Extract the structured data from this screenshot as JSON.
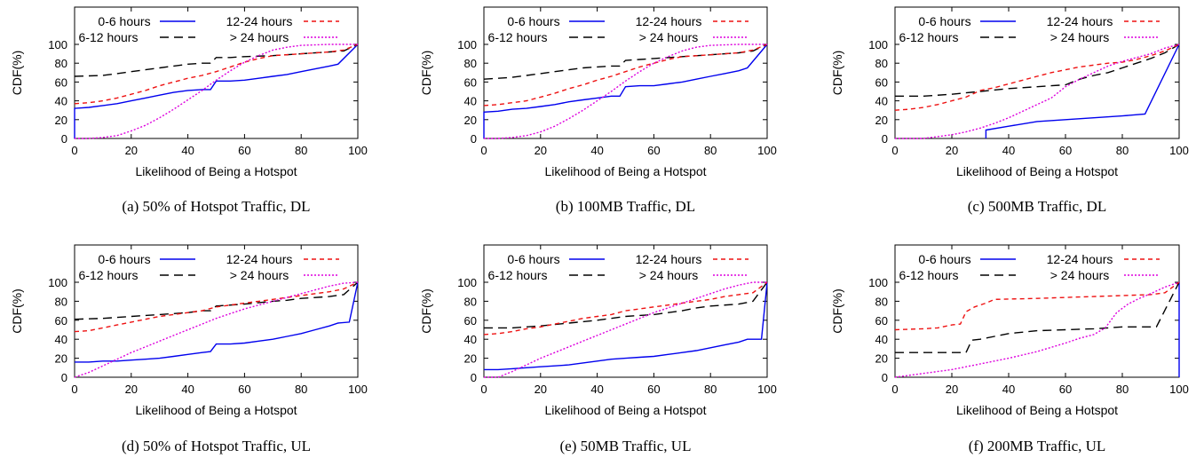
{
  "legend_labels": [
    "0-6 hours",
    "6-12 hours",
    "12-24 hours",
    "> 24 hours"
  ],
  "colors": {
    "0-6 hours": "#0000ee",
    "6-12 hours": "#000000",
    "12-24 hours": "#ee1111",
    "> 24 hours": "#dd00dd"
  },
  "chart_data": [
    {
      "type": "line",
      "caption": "(a)  50% of Hotspot Traffic, DL",
      "xlabel": "Likelihood of Being a Hotspot",
      "ylabel": "CDF(%)",
      "xlim": [
        0,
        100
      ],
      "ylim": [
        0,
        100
      ],
      "xticks": [
        0,
        20,
        40,
        60,
        80,
        100
      ],
      "yticks": [
        0,
        20,
        40,
        60,
        80,
        100
      ],
      "series": [
        {
          "name": "0-6 hours",
          "x": [
            0,
            0,
            5,
            10,
            15,
            20,
            25,
            30,
            35,
            40,
            45,
            48,
            50,
            55,
            60,
            65,
            70,
            75,
            80,
            85,
            90,
            93,
            100
          ],
          "y": [
            0,
            32,
            33,
            35,
            37,
            40,
            43,
            46,
            49,
            51,
            52,
            52,
            61,
            61,
            62,
            64,
            66,
            68,
            71,
            74,
            77,
            79,
            100
          ]
        },
        {
          "name": "6-12 hours",
          "x": [
            0,
            10,
            15,
            20,
            25,
            30,
            35,
            40,
            45,
            48,
            50,
            55,
            60,
            70,
            80,
            90,
            95,
            100
          ],
          "y": [
            66,
            67,
            69,
            71,
            73,
            75,
            77,
            79,
            80,
            80,
            86,
            86,
            87,
            88,
            90,
            92,
            93,
            100
          ]
        },
        {
          "name": "12-24 hours",
          "x": [
            0,
            5,
            10,
            15,
            20,
            25,
            30,
            35,
            40,
            45,
            50,
            55,
            60,
            65,
            70,
            80,
            90,
            95,
            100
          ],
          "y": [
            37,
            38,
            40,
            43,
            47,
            51,
            56,
            60,
            64,
            67,
            71,
            76,
            81,
            85,
            88,
            90,
            92,
            94,
            100
          ]
        },
        {
          "name": "> 24 hours",
          "x": [
            0,
            5,
            10,
            15,
            20,
            25,
            30,
            35,
            40,
            45,
            50,
            55,
            60,
            65,
            70,
            75,
            80,
            90,
            100
          ],
          "y": [
            0,
            0,
            1,
            3,
            8,
            14,
            22,
            31,
            41,
            51,
            62,
            72,
            81,
            88,
            94,
            97,
            99,
            100,
            100
          ]
        }
      ]
    },
    {
      "type": "line",
      "caption": "(b)  100MB Traffic, DL",
      "xlabel": "Likelihood of Being a Hotspot",
      "ylabel": "CDF(%)",
      "xlim": [
        0,
        100
      ],
      "ylim": [
        0,
        100
      ],
      "xticks": [
        0,
        20,
        40,
        60,
        80,
        100
      ],
      "yticks": [
        0,
        20,
        40,
        60,
        80,
        100
      ],
      "series": [
        {
          "name": "0-6 hours",
          "x": [
            0,
            0,
            5,
            10,
            15,
            20,
            25,
            30,
            35,
            40,
            45,
            48,
            50,
            55,
            60,
            65,
            70,
            75,
            80,
            85,
            90,
            93,
            100
          ],
          "y": [
            0,
            28,
            29,
            31,
            32,
            34,
            36,
            39,
            41,
            43,
            45,
            45,
            55,
            56,
            56,
            58,
            60,
            63,
            66,
            69,
            72,
            75,
            100
          ]
        },
        {
          "name": "6-12 hours",
          "x": [
            0,
            5,
            10,
            15,
            20,
            25,
            30,
            35,
            40,
            45,
            48,
            50,
            55,
            60,
            70,
            80,
            90,
            95,
            100
          ],
          "y": [
            63,
            64,
            65,
            67,
            69,
            71,
            73,
            75,
            76,
            77,
            77,
            83,
            84,
            85,
            87,
            89,
            91,
            93,
            100
          ]
        },
        {
          "name": "12-24 hours",
          "x": [
            0,
            5,
            10,
            15,
            20,
            25,
            30,
            35,
            40,
            45,
            50,
            55,
            60,
            65,
            70,
            80,
            90,
            95,
            100
          ],
          "y": [
            35,
            36,
            38,
            40,
            44,
            48,
            53,
            57,
            62,
            66,
            71,
            76,
            80,
            84,
            87,
            89,
            91,
            94,
            100
          ]
        },
        {
          "name": "> 24 hours",
          "x": [
            0,
            5,
            10,
            15,
            20,
            25,
            30,
            35,
            40,
            45,
            50,
            55,
            60,
            65,
            70,
            75,
            80,
            90,
            100
          ],
          "y": [
            0,
            0,
            1,
            3,
            7,
            13,
            21,
            30,
            40,
            50,
            61,
            71,
            80,
            87,
            93,
            97,
            99,
            100,
            100
          ]
        }
      ]
    },
    {
      "type": "line",
      "caption": "(c)  500MB Traffic, DL",
      "xlabel": "Likelihood of Being a Hotspot",
      "ylabel": "CDF(%)",
      "xlim": [
        0,
        100
      ],
      "ylim": [
        0,
        100
      ],
      "xticks": [
        0,
        20,
        40,
        60,
        80,
        100
      ],
      "yticks": [
        0,
        20,
        40,
        60,
        80,
        100
      ],
      "series": [
        {
          "name": "0-6 hours",
          "x": [
            32,
            32,
            40,
            50,
            60,
            70,
            80,
            88,
            100
          ],
          "y": [
            0,
            9,
            13,
            18,
            20,
            22,
            24,
            26,
            100
          ]
        },
        {
          "name": "6-12 hours",
          "x": [
            0,
            10,
            20,
            30,
            40,
            50,
            55,
            60,
            65,
            70,
            75,
            80,
            85,
            90,
            95,
            100
          ],
          "y": [
            45,
            45,
            47,
            50,
            53,
            55,
            56,
            57,
            63,
            67,
            70,
            75,
            80,
            85,
            91,
            100
          ]
        },
        {
          "name": "12-24 hours",
          "x": [
            0,
            5,
            10,
            15,
            20,
            25,
            30,
            35,
            40,
            45,
            50,
            55,
            60,
            65,
            70,
            75,
            80,
            85,
            90,
            95,
            100
          ],
          "y": [
            30,
            31,
            33,
            36,
            40,
            44,
            51,
            54,
            58,
            62,
            66,
            70,
            73,
            76,
            78,
            80,
            81,
            84,
            88,
            93,
            100
          ]
        },
        {
          "name": "> 24 hours",
          "x": [
            0,
            10,
            15,
            20,
            25,
            30,
            35,
            40,
            45,
            50,
            55,
            60,
            65,
            70,
            75,
            80,
            85,
            90,
            95,
            100
          ],
          "y": [
            0,
            0,
            2,
            4,
            7,
            11,
            16,
            22,
            29,
            36,
            43,
            55,
            63,
            70,
            77,
            82,
            86,
            90,
            96,
            100
          ]
        }
      ]
    },
    {
      "type": "line",
      "caption": "(d)  50% of Hotspot Traffic, UL",
      "xlabel": "Likelihood of Being a Hotspot",
      "ylabel": "CDF(%)",
      "xlim": [
        0,
        100
      ],
      "ylim": [
        0,
        100
      ],
      "xticks": [
        0,
        20,
        40,
        60,
        80,
        100
      ],
      "yticks": [
        0,
        20,
        40,
        60,
        80,
        100
      ],
      "series": [
        {
          "name": "0-6 hours",
          "x": [
            0,
            5,
            10,
            15,
            20,
            25,
            30,
            35,
            40,
            45,
            48,
            50,
            55,
            60,
            65,
            70,
            75,
            80,
            85,
            90,
            93,
            97,
            100
          ],
          "y": [
            16,
            16,
            17,
            17,
            18,
            19,
            20,
            22,
            24,
            26,
            27,
            35,
            35,
            36,
            38,
            40,
            43,
            46,
            50,
            54,
            57,
            58,
            100
          ]
        },
        {
          "name": "6-12 hours",
          "x": [
            0,
            10,
            20,
            30,
            40,
            45,
            48,
            50,
            60,
            70,
            75,
            80,
            90,
            95,
            100
          ],
          "y": [
            61,
            62,
            64,
            66,
            68,
            70,
            70,
            75,
            77,
            80,
            81,
            83,
            85,
            87,
            100
          ]
        },
        {
          "name": "12-24 hours",
          "x": [
            0,
            5,
            10,
            15,
            20,
            25,
            30,
            35,
            40,
            45,
            50,
            55,
            60,
            65,
            70,
            75,
            80,
            85,
            90,
            95,
            100
          ],
          "y": [
            48,
            49,
            52,
            55,
            58,
            61,
            64,
            66,
            68,
            70,
            74,
            76,
            78,
            80,
            82,
            84,
            86,
            88,
            90,
            93,
            100
          ]
        },
        {
          "name": "> 24 hours",
          "x": [
            0,
            5,
            10,
            15,
            20,
            25,
            30,
            35,
            40,
            45,
            50,
            55,
            60,
            65,
            70,
            75,
            80,
            85,
            90,
            95,
            100
          ],
          "y": [
            0,
            5,
            12,
            19,
            26,
            32,
            38,
            44,
            50,
            56,
            62,
            67,
            72,
            76,
            80,
            84,
            88,
            92,
            96,
            99,
            100
          ]
        }
      ]
    },
    {
      "type": "line",
      "caption": "(e)  50MB Traffic, UL",
      "xlabel": "Likelihood of Being a Hotspot",
      "ylabel": "CDF(%)",
      "xlim": [
        0,
        100
      ],
      "ylim": [
        0,
        100
      ],
      "xticks": [
        0,
        20,
        40,
        60,
        80,
        100
      ],
      "yticks": [
        0,
        20,
        40,
        60,
        80,
        100
      ],
      "series": [
        {
          "name": "0-6 hours",
          "x": [
            0,
            5,
            10,
            15,
            20,
            25,
            30,
            35,
            40,
            45,
            50,
            55,
            60,
            65,
            70,
            75,
            80,
            85,
            90,
            93,
            98,
            100
          ],
          "y": [
            8,
            8,
            9,
            10,
            11,
            12,
            13,
            15,
            17,
            19,
            20,
            21,
            22,
            24,
            26,
            28,
            31,
            34,
            37,
            40,
            40,
            100
          ]
        },
        {
          "name": "6-12 hours",
          "x": [
            0,
            10,
            20,
            30,
            40,
            50,
            60,
            65,
            70,
            75,
            80,
            90,
            95,
            100
          ],
          "y": [
            52,
            52,
            54,
            57,
            60,
            64,
            66,
            68,
            70,
            73,
            75,
            77,
            80,
            100
          ]
        },
        {
          "name": "12-24 hours",
          "x": [
            0,
            5,
            10,
            15,
            20,
            25,
            30,
            35,
            40,
            45,
            50,
            55,
            60,
            65,
            70,
            75,
            80,
            85,
            90,
            95,
            100
          ],
          "y": [
            45,
            46,
            48,
            51,
            53,
            56,
            59,
            62,
            64,
            66,
            70,
            72,
            74,
            76,
            78,
            80,
            82,
            85,
            87,
            89,
            100
          ]
        },
        {
          "name": "> 24 hours",
          "x": [
            0,
            5,
            10,
            15,
            20,
            25,
            30,
            35,
            40,
            45,
            50,
            55,
            60,
            65,
            70,
            75,
            80,
            85,
            90,
            95,
            100
          ],
          "y": [
            0,
            0,
            6,
            13,
            20,
            26,
            32,
            38,
            44,
            50,
            56,
            62,
            68,
            73,
            78,
            83,
            88,
            93,
            97,
            100,
            100
          ]
        }
      ]
    },
    {
      "type": "line",
      "caption": "(f)  200MB Traffic, UL",
      "xlabel": "Likelihood of Being a Hotspot",
      "ylabel": "CDF(%)",
      "xlim": [
        0,
        100
      ],
      "ylim": [
        0,
        100
      ],
      "xticks": [
        0,
        20,
        40,
        60,
        80,
        100
      ],
      "yticks": [
        0,
        20,
        40,
        60,
        80,
        100
      ],
      "series": [
        {
          "name": "0-6 hours",
          "x": [
            100,
            100
          ],
          "y": [
            0,
            100
          ]
        },
        {
          "name": "6-12 hours",
          "x": [
            0,
            10,
            20,
            25,
            27,
            30,
            35,
            40,
            50,
            60,
            70,
            75,
            80,
            85,
            90,
            92,
            100
          ],
          "y": [
            26,
            26,
            26,
            26,
            39,
            40,
            43,
            46,
            49,
            50,
            51,
            52,
            53,
            53,
            53,
            53,
            100
          ]
        },
        {
          "name": "12-24 hours",
          "x": [
            0,
            10,
            15,
            20,
            23,
            25,
            28,
            32,
            35,
            50,
            60,
            70,
            80,
            90,
            95,
            100
          ],
          "y": [
            50,
            51,
            52,
            55,
            56,
            69,
            74,
            78,
            82,
            83,
            84,
            85,
            86,
            87,
            89,
            100
          ]
        },
        {
          "name": "> 24 hours",
          "x": [
            0,
            10,
            20,
            30,
            40,
            50,
            60,
            65,
            70,
            74,
            78,
            82,
            86,
            90,
            95,
            100
          ],
          "y": [
            0,
            4,
            8,
            14,
            20,
            27,
            36,
            41,
            45,
            52,
            68,
            77,
            83,
            88,
            95,
            100
          ]
        }
      ]
    }
  ]
}
